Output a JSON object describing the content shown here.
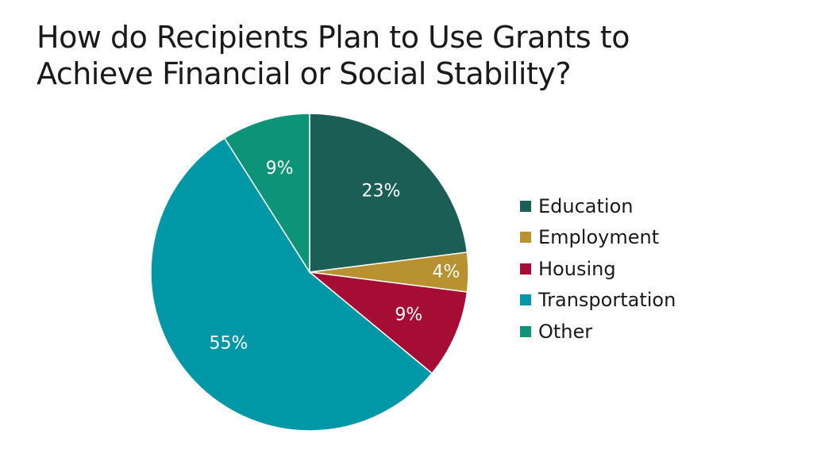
{
  "title_lines": [
    "How do Recipients Plan to Use Grants to",
    "Achieve Financial or Social Stability?"
  ],
  "chart_data": {
    "type": "pie",
    "title": "How do Recipients Plan to Use Grants to Achieve Financial or Social Stability?",
    "slices": [
      {
        "label": "Education",
        "value": 23,
        "display": "23%",
        "color": "#1b5e55"
      },
      {
        "label": "Employment",
        "value": 4,
        "display": "4%",
        "color": "#b89130"
      },
      {
        "label": "Housing",
        "value": 9,
        "display": "9%",
        "color": "#a50d34"
      },
      {
        "label": "Transportation",
        "value": 55,
        "display": "55%",
        "color": "#0097a7"
      },
      {
        "label": "Other",
        "value": 9,
        "display": "9%",
        "color": "#0d9478"
      }
    ],
    "legend_position": "right",
    "start_angle": "12 o'clock",
    "direction": "clockwise"
  }
}
